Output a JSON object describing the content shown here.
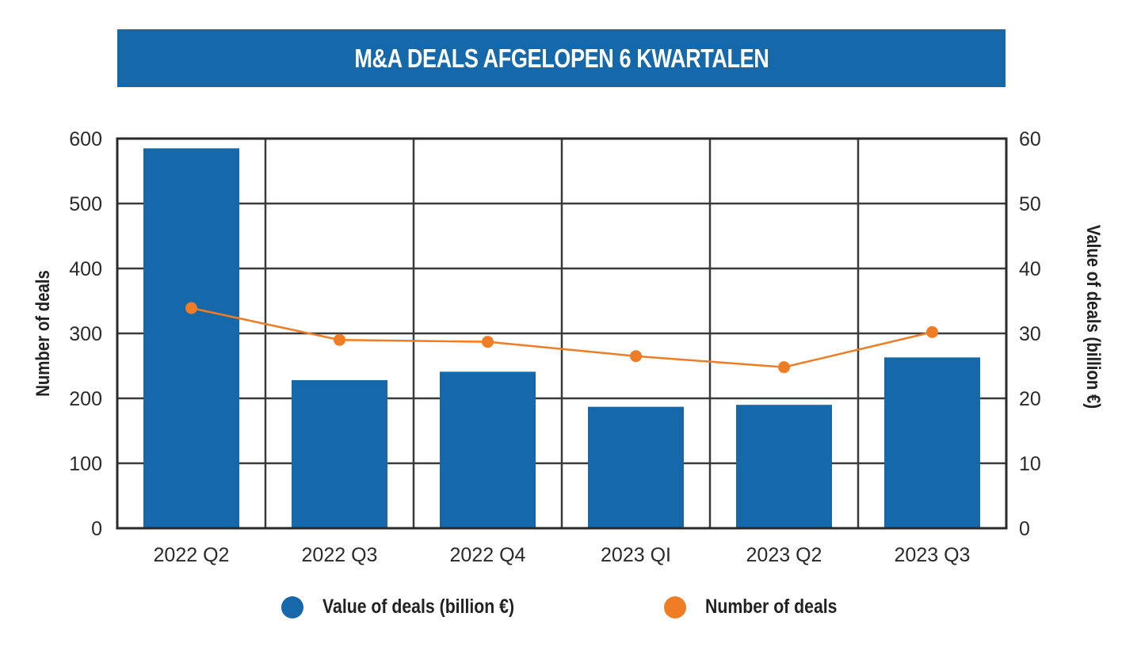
{
  "chart_data": {
    "type": "bar",
    "title": "M&A DEALS AFGELOPEN 6 KWARTALEN",
    "categories": [
      "2022 Q2",
      "2022 Q3",
      "2022 Q4",
      "2023 QI",
      "2023 Q2",
      "2023 Q3"
    ],
    "series": [
      {
        "name": "Value of deals (billion €)",
        "type": "bar",
        "axis": "right",
        "color": "#1568a9",
        "values": [
          58.5,
          22.8,
          24.1,
          18.7,
          19.0,
          26.3
        ]
      },
      {
        "name": "Number of deals",
        "type": "line",
        "axis": "left",
        "color": "#ee7d26",
        "values": [
          339,
          290,
          287,
          265,
          248,
          302
        ]
      }
    ],
    "left_axis": {
      "label": "Number of deals",
      "ylim": [
        0,
        600
      ],
      "ticks": [
        "0",
        "100",
        "200",
        "300",
        "400",
        "500",
        "600"
      ]
    },
    "right_axis": {
      "label": "Value of deals (billion €)",
      "ylim": [
        0,
        60
      ],
      "ticks": [
        "0",
        "10",
        "20",
        "30",
        "40",
        "50",
        "60"
      ]
    },
    "grid": true,
    "legend_position": "bottom"
  },
  "legend": [
    {
      "label": "Value of deals (billion €)",
      "color": "#1568a9"
    },
    {
      "label": "Number of deals",
      "color": "#ee7d26"
    }
  ]
}
